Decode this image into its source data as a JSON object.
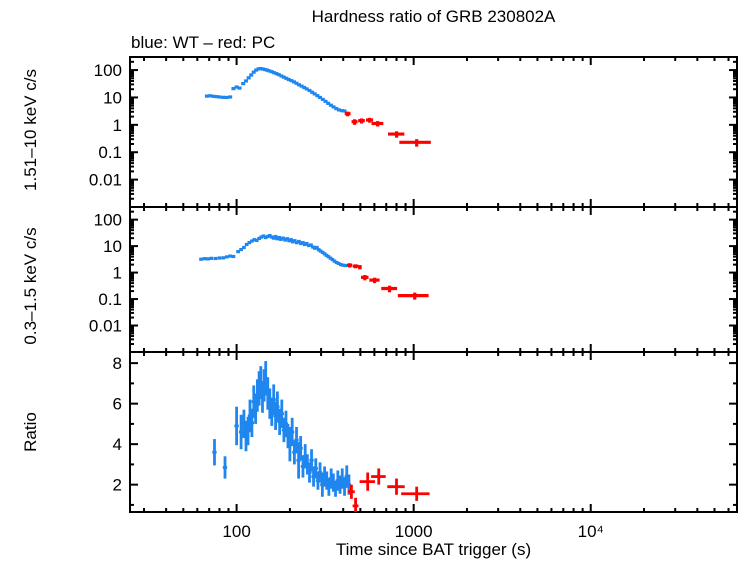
{
  "title": "Hardness ratio of GRB 230802A",
  "legend_text": "blue: WT – red: PC",
  "xlabel": "Time since BAT trigger (s)",
  "colors": {
    "wt_blue": "#1E86EE",
    "pc_red": "#FF0000",
    "axis": "#000000",
    "background": "#FFFFFF"
  },
  "chart_data": {
    "type": "scatter",
    "title": "Hardness ratio of GRB 230802A",
    "legend": [
      {
        "label": "WT",
        "color": "#1E86EE"
      },
      {
        "label": "PC",
        "color": "#FF0000"
      }
    ],
    "xlabel": "Time since BAT trigger (s)",
    "xscale": "log",
    "xlim": [
      25,
      67000
    ],
    "xtick_values": [
      100,
      1000,
      10000
    ],
    "xtick_labels": [
      "100",
      "1000",
      "10⁴"
    ],
    "grid": false,
    "panels": [
      {
        "id": "hard",
        "ylabel": "1.51–10 keV c/s",
        "yscale": "log",
        "ylim": [
          0.001,
          300
        ],
        "ytick_values": [
          100,
          10,
          1,
          0.1,
          0.01
        ],
        "ytick_labels": [
          "100",
          "10",
          "1",
          "0.1",
          "0.01"
        ],
        "series": [
          {
            "name": "WT",
            "color_key": "wt_blue",
            "xerr_frac": 0.026,
            "yerr_frac": 0.09,
            "points": [
              [
                68,
                11.2
              ],
              [
                71,
                11.5
              ],
              [
                74,
                11.0
              ],
              [
                77,
                10.7
              ],
              [
                80,
                10.4
              ],
              [
                84,
                10.1
              ],
              [
                88,
                10.0
              ],
              [
                92,
                10.4
              ],
              [
                96,
                21
              ],
              [
                100,
                24
              ],
              [
                104,
                22
              ],
              [
                109,
                32
              ],
              [
                113,
                40
              ],
              [
                117,
                52
              ],
              [
                121,
                66
              ],
              [
                125,
                84
              ],
              [
                129,
                100
              ],
              [
                133,
                110
              ],
              [
                137,
                113
              ],
              [
                141,
                109
              ],
              [
                145,
                104
              ],
              [
                149,
                99
              ],
              [
                153,
                93
              ],
              [
                158,
                87
              ],
              [
                163,
                80
              ],
              [
                168,
                74
              ],
              [
                173,
                68
              ],
              [
                179,
                61
              ],
              [
                185,
                55
              ],
              [
                191,
                50
              ],
              [
                197,
                45
              ],
              [
                204,
                41
              ],
              [
                211,
                37
              ],
              [
                218,
                33
              ],
              [
                225,
                29
              ],
              [
                233,
                26
              ],
              [
                241,
                23
              ],
              [
                249,
                20.5
              ],
              [
                258,
                18
              ],
              [
                267,
                15.5
              ],
              [
                276,
                13.5
              ],
              [
                286,
                11.6
              ],
              [
                296,
                10.0
              ],
              [
                307,
                8.5
              ],
              [
                318,
                7.2
              ],
              [
                329,
                6.1
              ],
              [
                341,
                5.2
              ],
              [
                353,
                4.5
              ],
              [
                366,
                3.9
              ],
              [
                379,
                3.5
              ],
              [
                393,
                3.3
              ],
              [
                407,
                3.2
              ]
            ]
          },
          {
            "name": "PC",
            "color_key": "pc_red",
            "xerr_frac": 0.05,
            "yerr_frac": 0.2,
            "points": [
              [
                424,
                2.55,
                0.5,
                16
              ],
              [
                464,
                1.3,
                0.3,
                18
              ],
              [
                508,
                1.42,
                0.3,
                22
              ],
              [
                564,
                1.5,
                0.3,
                26
              ],
              [
                626,
                1.12,
                0.25,
                48
              ],
              [
                801,
                0.46,
                0.12,
                85
              ],
              [
                1040,
                0.23,
                0.07,
                210
              ]
            ]
          }
        ]
      },
      {
        "id": "soft",
        "ylabel": "0.3–1.5 keV c/s",
        "yscale": "log",
        "ylim": [
          0.001,
          300
        ],
        "ytick_values": [
          100,
          10,
          1,
          0.1,
          0.01
        ],
        "ytick_labels": [
          "100",
          "10",
          "1",
          "0.1",
          "0.01"
        ],
        "series": [
          {
            "name": "WT",
            "color_key": "wt_blue",
            "xerr_frac": 0.024,
            "yerr_frac": 0.11,
            "points": [
              [
                63,
                3.2
              ],
              [
                66,
                3.35
              ],
              [
                69,
                3.3
              ],
              [
                72,
                3.45
              ],
              [
                76,
                3.4
              ],
              [
                80,
                3.55
              ],
              [
                84,
                3.6
              ],
              [
                88,
                3.9
              ],
              [
                92,
                4.2
              ],
              [
                96,
                4.05
              ],
              [
                102,
                6.2
              ],
              [
                106,
                7.4
              ],
              [
                110,
                8.8
              ],
              [
                114,
                11.5
              ],
              [
                118,
                13.5
              ],
              [
                122,
                15.5
              ],
              [
                126,
                17.5
              ],
              [
                130,
                16.5
              ],
              [
                134,
                19.5
              ],
              [
                138,
                22
              ],
              [
                142,
                24
              ],
              [
                146,
                21
              ],
              [
                150,
                23
              ],
              [
                154,
                25
              ],
              [
                158,
                22
              ],
              [
                162,
                20
              ],
              [
                166,
                23
              ],
              [
                170,
                19
              ],
              [
                174,
                21
              ],
              [
                178,
                18
              ],
              [
                183,
                20
              ],
              [
                188,
                17
              ],
              [
                193,
                19
              ],
              [
                198,
                16
              ],
              [
                203,
                17.5
              ],
              [
                208,
                14.5
              ],
              [
                213,
                16
              ],
              [
                219,
                13.5
              ],
              [
                225,
                15
              ],
              [
                231,
                12.5
              ],
              [
                237,
                13.5
              ],
              [
                243,
                11.5
              ],
              [
                249,
                12.5
              ],
              [
                256,
                10.5
              ],
              [
                263,
                11
              ],
              [
                270,
                9.2
              ],
              [
                277,
                8.3
              ],
              [
                284,
                8.9
              ],
              [
                291,
                7.3
              ],
              [
                298,
                6.5
              ],
              [
                306,
                5.8
              ],
              [
                314,
                5.1
              ],
              [
                322,
                4.5
              ],
              [
                330,
                4.0
              ],
              [
                339,
                3.5
              ],
              [
                348,
                3.1
              ],
              [
                357,
                2.7
              ],
              [
                367,
                2.4
              ],
              [
                377,
                2.2
              ],
              [
                388,
                2.0
              ],
              [
                399,
                1.9
              ],
              [
                411,
                1.85
              ]
            ]
          },
          {
            "name": "PC",
            "color_key": "pc_red",
            "xerr_frac": 0.05,
            "yerr_frac": 0.2,
            "points": [
              [
                435,
                1.9,
                0.35,
                15
              ],
              [
                470,
                1.75,
                0.3,
                17
              ],
              [
                497,
                1.62,
                0.3,
                12
              ],
              [
                530,
                0.66,
                0.15,
                26
              ],
              [
                602,
                0.52,
                0.12,
                40
              ],
              [
                731,
                0.25,
                0.07,
                75
              ],
              [
                1014,
                0.135,
                0.04,
                200
              ]
            ]
          }
        ]
      },
      {
        "id": "ratio",
        "ylabel": "Ratio",
        "yscale": "linear",
        "ylim": [
          0.65,
          8.55
        ],
        "ytick_values": [
          2,
          4,
          6,
          8
        ],
        "ytick_labels": [
          "2",
          "4",
          "6",
          "8"
        ],
        "series": [
          {
            "name": "WT",
            "color_key": "wt_blue",
            "xerr_frac": 0.028,
            "yerr_frac": 0.15,
            "points": [
              [
                75,
                3.6,
                0.65
              ],
              [
                86,
                2.85,
                0.55
              ],
              [
                100,
                4.9,
                0.95
              ],
              [
                106,
                4.6,
                0.85
              ],
              [
                110,
                5.0,
                0.7
              ],
              [
                113,
                4.4,
                0.75
              ],
              [
                116,
                4.65,
                0.7
              ],
              [
                119,
                5.4,
                0.8
              ],
              [
                122,
                5.05,
                0.7
              ],
              [
                125,
                6.1,
                0.8
              ],
              [
                128,
                5.75,
                0.75
              ],
              [
                131,
                6.4,
                0.8
              ],
              [
                134,
                6.75,
                0.85
              ],
              [
                137,
                7.05,
                0.8
              ],
              [
                140,
                6.3,
                0.75
              ],
              [
                143,
                6.9,
                0.8
              ],
              [
                146,
                7.25,
                0.85
              ],
              [
                150,
                6.5,
                0.8
              ],
              [
                154,
                6.0,
                0.75
              ],
              [
                158,
                5.6,
                0.7
              ],
              [
                162,
                6.2,
                0.75
              ],
              [
                166,
                5.4,
                0.7
              ],
              [
                170,
                5.85,
                0.75
              ],
              [
                175,
                5.1,
                0.65
              ],
              [
                180,
                5.5,
                0.7
              ],
              [
                185,
                4.7,
                0.6
              ],
              [
                190,
                5.0,
                0.65
              ],
              [
                195,
                4.4,
                0.6
              ],
              [
                200,
                4.0,
                0.85
              ],
              [
                206,
                4.6,
                0.7
              ],
              [
                212,
                3.6,
                0.6
              ],
              [
                218,
                4.2,
                0.65
              ],
              [
                224,
                3.2,
                0.9
              ],
              [
                230,
                3.8,
                0.6
              ],
              [
                237,
                2.9,
                0.55
              ],
              [
                244,
                3.4,
                0.6
              ],
              [
                251,
                3.0,
                0.5
              ],
              [
                258,
                2.6,
                0.5
              ],
              [
                265,
                3.2,
                0.55
              ],
              [
                272,
                2.4,
                0.5
              ],
              [
                280,
                2.8,
                0.5
              ],
              [
                288,
                2.2,
                0.45
              ],
              [
                296,
                2.6,
                0.5
              ],
              [
                305,
                2.0,
                0.6
              ],
              [
                314,
                2.4,
                0.5
              ],
              [
                323,
                2.2,
                0.45
              ],
              [
                332,
                1.9,
                0.45
              ],
              [
                342,
                2.3,
                0.5
              ],
              [
                352,
                2.1,
                0.45
              ],
              [
                362,
                1.8,
                0.4
              ],
              [
                373,
                2.2,
                0.5
              ],
              [
                384,
                2.0,
                0.45
              ],
              [
                395,
                2.3,
                0.5
              ],
              [
                407,
                1.9,
                0.45
              ],
              [
                419,
                2.4,
                0.55
              ],
              [
                431,
                2.0,
                0.5
              ]
            ]
          },
          {
            "name": "PC",
            "color_key": "pc_red",
            "xerr_frac": 0.05,
            "yerr_frac": 0.2,
            "points": [
              [
                445,
                1.65,
                0.35,
                20
              ],
              [
                470,
                0.95,
                0.4,
                18
              ],
              [
                550,
                2.15,
                0.45,
                55
              ],
              [
                635,
                2.4,
                0.4,
                60
              ],
              [
                800,
                1.9,
                0.4,
                90
              ],
              [
                1040,
                1.55,
                0.35,
                190
              ]
            ]
          }
        ]
      }
    ]
  }
}
